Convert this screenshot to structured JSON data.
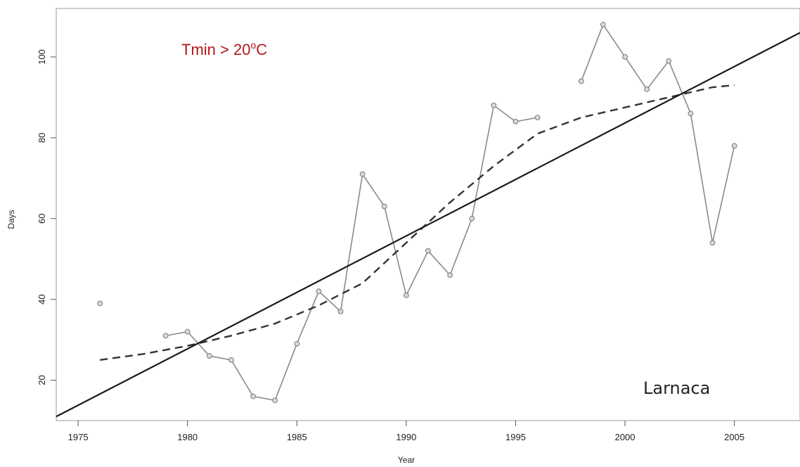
{
  "chart_data": {
    "type": "line",
    "annotation": {
      "prefix": "Tmin > 20",
      "superscript": "o",
      "suffix": "C",
      "color": "#b5161b"
    },
    "station": "Larnaca",
    "xlabel": "Year",
    "ylabel": "Days",
    "xlim": [
      1974,
      2008
    ],
    "ylim": [
      10,
      112
    ],
    "xticks": [
      "1975",
      "1980",
      "1985",
      "1990",
      "1995",
      "2000",
      "2005"
    ],
    "yticks": [
      "20",
      "40",
      "60",
      "80",
      "100"
    ],
    "grid": false,
    "legend": "none",
    "series": [
      {
        "style": "observed",
        "color": "#8a8a8a",
        "x": [
          1976,
          1979,
          1980,
          1981,
          1982,
          1983,
          1984,
          1985,
          1986,
          1987,
          1988,
          1989,
          1990,
          1991,
          1992,
          1993,
          1994,
          1995,
          1996,
          1998,
          1999,
          2000,
          2001,
          2002,
          2003,
          2004,
          2005
        ],
        "y": [
          39,
          31,
          32,
          26,
          25,
          16,
          15,
          29,
          42,
          37,
          71,
          63,
          41,
          52,
          46,
          60,
          88,
          84,
          85,
          94,
          108,
          100,
          92,
          99,
          86,
          54,
          78
        ],
        "segments": [
          [
            1976,
            1976
          ],
          [
            1979,
            1996
          ],
          [
            1998,
            2005
          ]
        ]
      },
      {
        "style": "smoothed",
        "dashed": true,
        "color": "#333333",
        "x": [
          1976,
          1978,
          1980,
          1982,
          1984,
          1986,
          1988,
          1990,
          1992,
          1994,
          1996,
          1998,
          2000,
          2002,
          2004,
          2005
        ],
        "y": [
          25,
          26.5,
          28.5,
          31,
          34,
          38.5,
          44,
          54,
          64,
          73,
          81,
          85,
          87.5,
          90,
          92.5,
          93
        ]
      },
      {
        "style": "linear-trend",
        "color": "#1a1a1a",
        "x": [
          1974,
          2008
        ],
        "y": [
          11,
          106
        ]
      }
    ]
  }
}
